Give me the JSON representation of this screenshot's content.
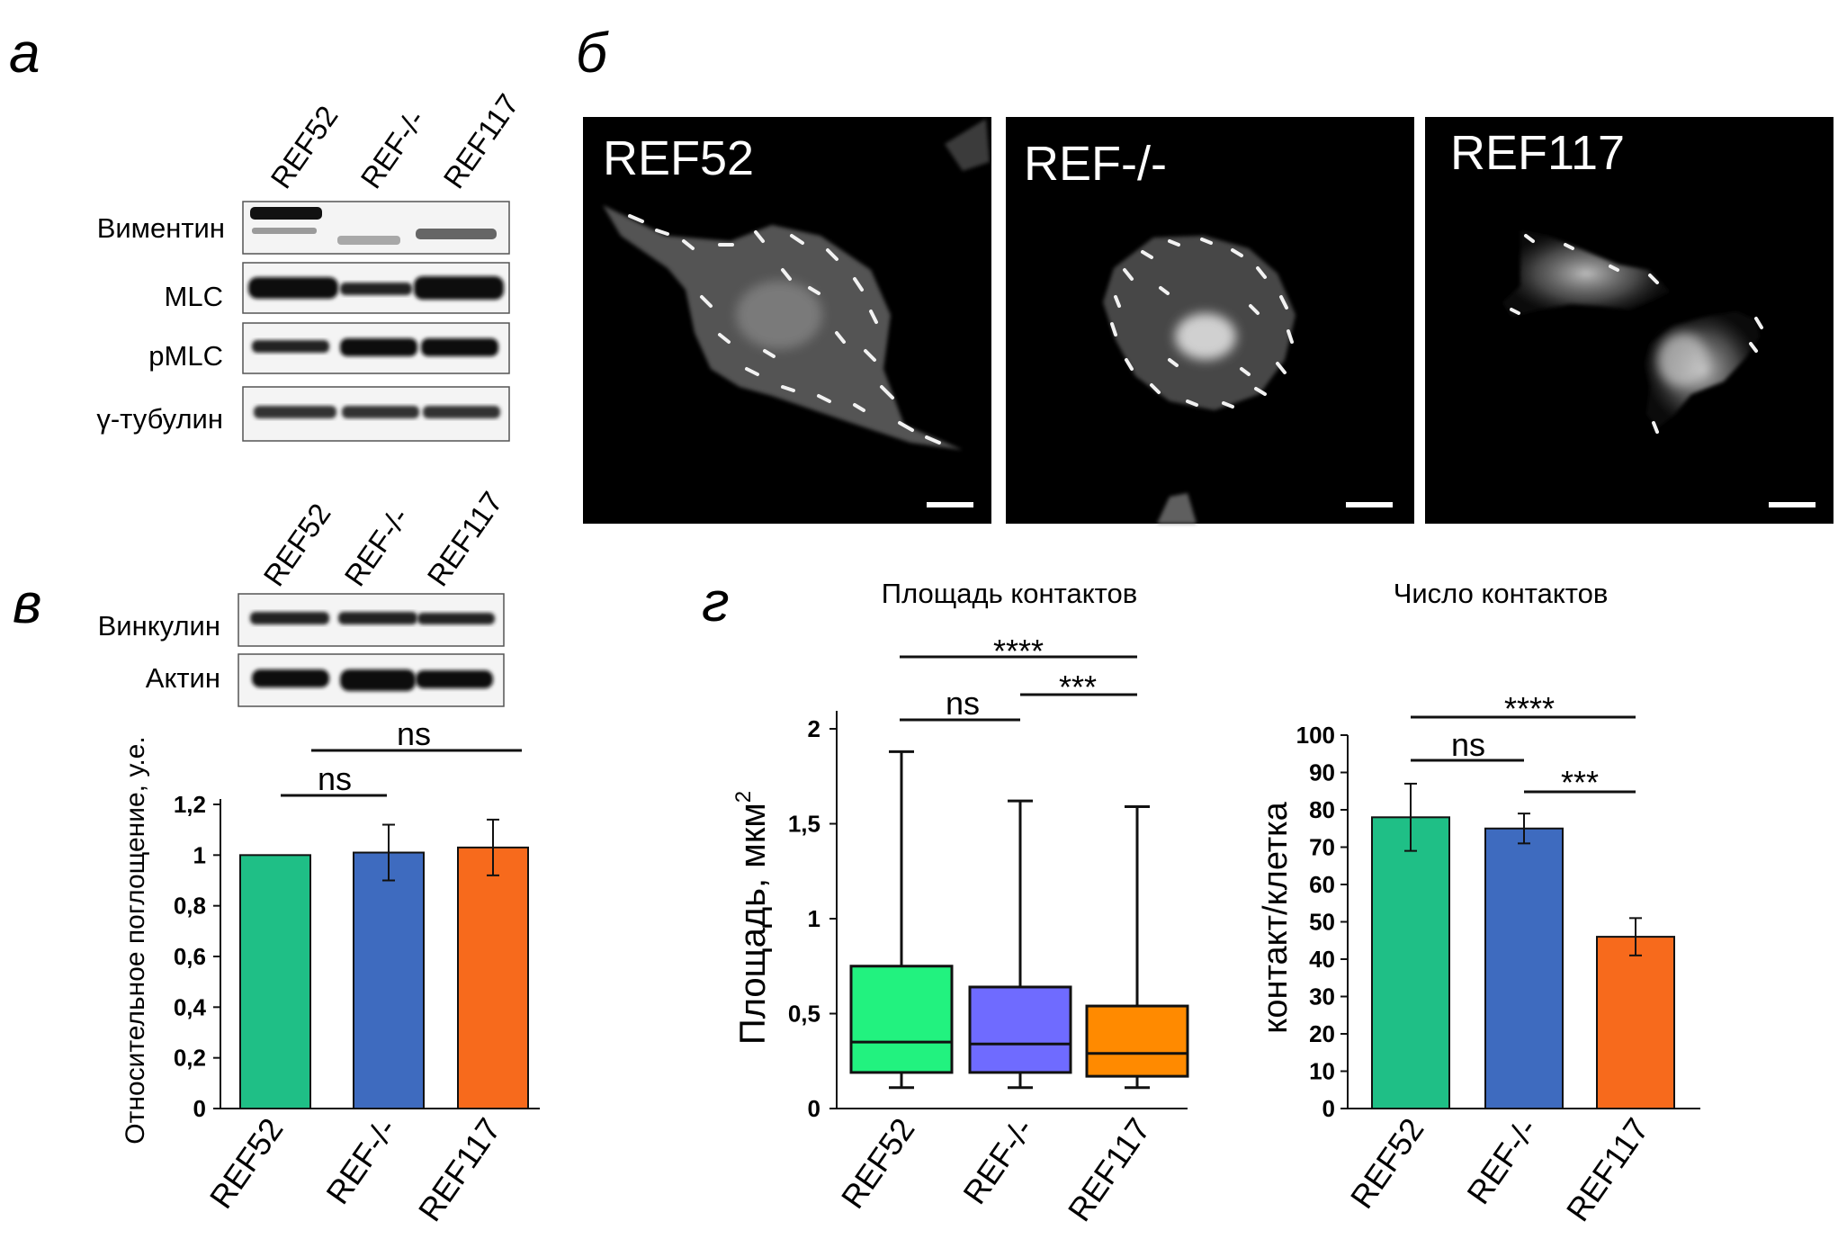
{
  "panels": {
    "a": {
      "letter": "а",
      "lanes": [
        "REF52",
        "REF-/-",
        "REF117"
      ],
      "blot_labels": [
        "Виментин",
        "MLC",
        "pMLC",
        "γ-тубулин"
      ]
    },
    "b": {
      "letter": "б",
      "images": [
        "REF52",
        "REF-/-",
        "REF117"
      ]
    },
    "c": {
      "letter": "в",
      "lanes": [
        "REF52",
        "REF-/-",
        "REF117"
      ],
      "blot_labels": [
        "Винкулин",
        "Актин"
      ]
    },
    "d": {
      "letter": "г"
    }
  },
  "colors": {
    "green": "#1fbf86",
    "blue": "#3e6bbf",
    "orange": "#f76a1c",
    "box_green": "#22f27f",
    "box_blue": "#6f6bff",
    "box_orange": "#ff8a00"
  },
  "chart_data": [
    {
      "type": "bar",
      "ylabel": "Относительное поглощение, у.е.",
      "categories": [
        "REF52",
        "REF-/-",
        "REF117"
      ],
      "values": [
        1.0,
        1.01,
        1.03
      ],
      "errors": [
        0.0,
        0.11,
        0.11
      ],
      "ylim": [
        0,
        1.2
      ],
      "yticks": [
        "0",
        "0,2",
        "0,4",
        "0,6",
        "0,8",
        "1",
        "1,2"
      ],
      "annotations": [
        "ns",
        "ns"
      ]
    },
    {
      "type": "box",
      "title": "Площадь контактов",
      "ylabel": "Площадь, мкм",
      "ylabel_sup": "2",
      "categories": [
        "REF52",
        "REF-/-",
        "REF117"
      ],
      "boxes": [
        {
          "min": 0.11,
          "q1": 0.19,
          "median": 0.35,
          "q3": 0.75,
          "max": 1.88
        },
        {
          "min": 0.11,
          "q1": 0.19,
          "median": 0.34,
          "q3": 0.64,
          "max": 1.62
        },
        {
          "min": 0.11,
          "q1": 0.17,
          "median": 0.29,
          "q3": 0.54,
          "max": 1.59
        }
      ],
      "ylim": [
        0,
        2
      ],
      "yticks": [
        "0",
        "0,5",
        "1",
        "1,5",
        "2"
      ],
      "annotations": [
        "****",
        "ns",
        "***"
      ]
    },
    {
      "type": "bar",
      "title": "Число контактов",
      "ylabel": "контакт/клетка",
      "categories": [
        "REF52",
        "REF-/-",
        "REF117"
      ],
      "values": [
        78,
        75,
        46
      ],
      "errors": [
        9,
        4,
        5
      ],
      "ylim": [
        0,
        100
      ],
      "yticks": [
        "0",
        "10",
        "20",
        "30",
        "40",
        "50",
        "60",
        "70",
        "80",
        "90",
        "100"
      ],
      "annotations": [
        "****",
        "ns",
        "***"
      ]
    }
  ]
}
